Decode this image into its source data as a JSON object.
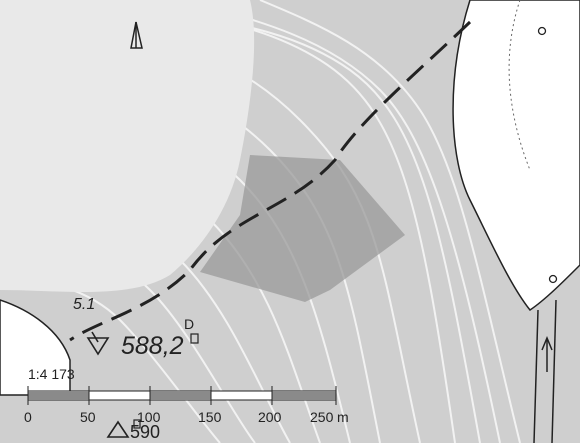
{
  "map": {
    "title": "",
    "background_color": "#cfcfcf",
    "accent_area_color": "#9a9a9a",
    "route_color": "#222222",
    "contour_color": "#f2f2f2"
  },
  "labels": {
    "spot_height": "5.1",
    "elevation": "588,2",
    "bottom_cut": "590",
    "marker_symbol": "D"
  },
  "scale": {
    "ratio": "1:4 173",
    "ticks": [
      "0",
      "50",
      "100",
      "150",
      "200",
      "250"
    ],
    "unit": "m"
  },
  "icons": {
    "north_arrow": "north-arrow-icon",
    "triangle_marker": "triangle-marker-icon",
    "direction_arrow": "up-arrow-icon",
    "survey_circle": "circle-point-icon"
  }
}
